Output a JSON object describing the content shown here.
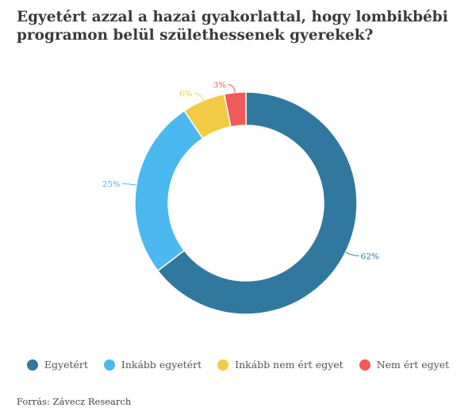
{
  "title": "Egyetért azzal a hazai gyakorlattal, hogy lombikbébi programon belül születhessenek gyerekek?",
  "source": "Forrás: Závecz Research",
  "chart_data": {
    "type": "pie",
    "donut": true,
    "title": "Egyetért azzal a hazai gyakorlattal, hogy lombikbébi programon belül születhessenek gyerekek?",
    "categories": [
      "Egyetért",
      "Inkább egyetért",
      "Inkább nem ért egyet",
      "Nem ért egyet"
    ],
    "values": [
      62,
      25,
      6,
      3
    ],
    "labels": [
      "62%",
      "25%",
      "6%",
      "3%"
    ],
    "colors": [
      "#31789e",
      "#4bb8ef",
      "#f2cb45",
      "#f05a5a"
    ],
    "legend_position": "bottom"
  },
  "legend": [
    {
      "label": "Egyetért",
      "color": "#31789e"
    },
    {
      "label": "Inkább egyetért",
      "color": "#4bb8ef"
    },
    {
      "label": "Inkább nem ért egyet",
      "color": "#f2cb45"
    },
    {
      "label": "Nem ért egyet",
      "color": "#f05a5a"
    }
  ]
}
